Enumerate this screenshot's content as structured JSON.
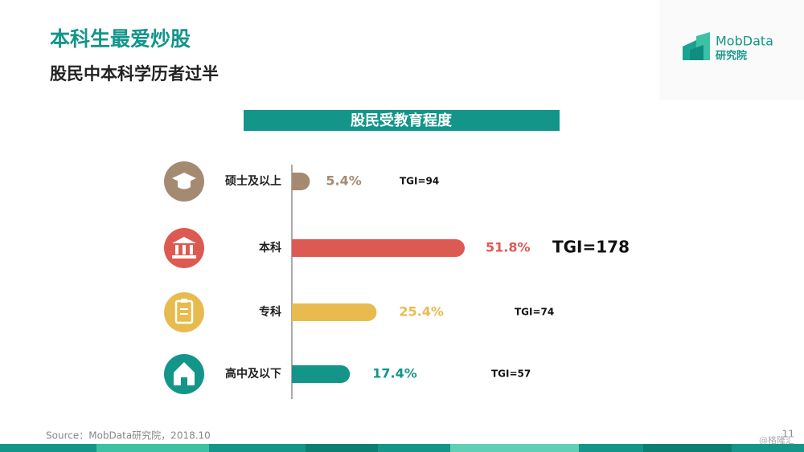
{
  "chart_data": {
    "type": "bar",
    "orientation": "horizontal",
    "title": "本科生最爱炒股",
    "subtitle": "股民中本科学历者过半",
    "chart_title": "股民受教育程度",
    "categories": [
      "硕士及以上",
      "本科",
      "专科",
      "高中及以下"
    ],
    "values": [
      5.4,
      51.8,
      25.4,
      17.4
    ],
    "value_labels": [
      "5.4%",
      "51.8%",
      "25.4%",
      "17.4%"
    ],
    "colors": [
      "#a58a72",
      "#dd5a53",
      "#e8bb4e",
      "#13958a"
    ],
    "tgi_labels": [
      "TGI=94",
      "TGI=178",
      "TGI=74",
      "TGI=57"
    ],
    "source": "Source：MobData研究院，2018.10",
    "page_number": "11",
    "logo_name": "MobData",
    "logo_sub": "研究院",
    "watermark": "@格隆汇"
  }
}
